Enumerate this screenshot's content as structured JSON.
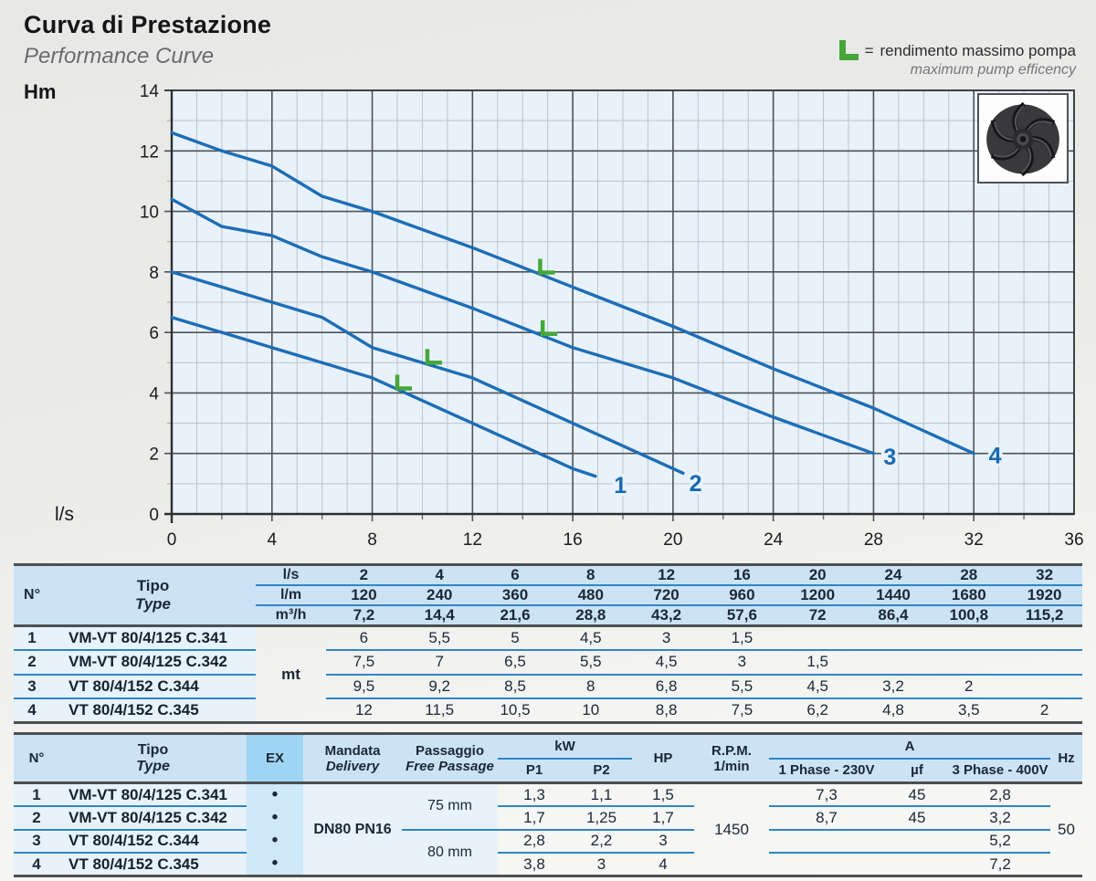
{
  "header": {
    "title": "Curva di Prestazione",
    "subtitle": "Performance Curve",
    "legend": {
      "equals": "=",
      "line1": "rendimento massimo pompa",
      "line2": "maximum pump efficency"
    }
  },
  "chart_data": {
    "type": "line",
    "title": "Curva di Prestazione / Performance Curve",
    "xlabel": "l/s",
    "ylabel": "Hm",
    "xlim": [
      0,
      36
    ],
    "ylim": [
      0,
      14
    ],
    "x_ticks": [
      0,
      4,
      8,
      12,
      16,
      20,
      24,
      28,
      32,
      36
    ],
    "y_ticks": [
      0,
      2,
      4,
      6,
      8,
      10,
      12,
      14
    ],
    "grid": "minor every 1 unit; major every 4 (x) and 2 (y); legend top-right",
    "curve_color": "#1d6db6",
    "marker_color": "#44a737",
    "marker_meaning": "L = rendimento massimo pompa / maximum pump efficency",
    "series": [
      {
        "name": "1",
        "pump": "VM-VT 80/4/125 C.341",
        "x": [
          0,
          2,
          4,
          6,
          8,
          12,
          16,
          16.9
        ],
        "y": [
          6.5,
          6,
          5.5,
          5,
          4.5,
          3,
          1.5,
          1.25
        ],
        "efficiency_marker": [
          9,
          4.15
        ],
        "label_pos": [
          17.9,
          0.97
        ]
      },
      {
        "name": "2",
        "pump": "VM-VT 80/4/125 C.342",
        "x": [
          0,
          2,
          4,
          6,
          8,
          12,
          16,
          20,
          20.4
        ],
        "y": [
          8,
          7.5,
          7,
          6.5,
          5.5,
          4.5,
          3,
          1.5,
          1.35
        ],
        "efficiency_marker": [
          10.2,
          5.0
        ],
        "label_pos": [
          20.9,
          1.02
        ]
      },
      {
        "name": "3",
        "pump": "VT 80/4/152 C.344",
        "x": [
          0,
          2,
          4,
          6,
          8,
          12,
          16,
          20,
          24,
          28
        ],
        "y": [
          10.4,
          9.5,
          9.2,
          8.5,
          8,
          6.8,
          5.5,
          4.5,
          3.2,
          2
        ],
        "efficiency_marker": [
          14.8,
          5.95
        ],
        "label_pos": [
          28.65,
          1.9
        ]
      },
      {
        "name": "4",
        "pump": "VT 80/4/152 C.345",
        "x": [
          0,
          2,
          4,
          6,
          8,
          12,
          16,
          20,
          24,
          28,
          32
        ],
        "y": [
          12.6,
          12,
          11.5,
          10.5,
          10,
          8.8,
          7.5,
          6.2,
          4.8,
          3.5,
          2
        ],
        "efficiency_marker": [
          14.7,
          7.98
        ],
        "label_pos": [
          32.85,
          1.95
        ]
      }
    ]
  },
  "tables": {
    "t1": {
      "header": {
        "n": "N°",
        "tipo": "Tipo",
        "type": "Type"
      },
      "unit_rows": [
        {
          "unit": "l/s",
          "values": [
            "2",
            "4",
            "6",
            "8",
            "12",
            "16",
            "20",
            "24",
            "28",
            "32"
          ]
        },
        {
          "unit": "l/m",
          "values": [
            "120",
            "240",
            "360",
            "480",
            "720",
            "960",
            "1200",
            "1440",
            "1680",
            "1920"
          ]
        },
        {
          "unit": "m³/h",
          "values": [
            "7,2",
            "14,4",
            "21,6",
            "28,8",
            "43,2",
            "57,6",
            "72",
            "86,4",
            "100,8",
            "115,2"
          ]
        }
      ],
      "unit_merged": "mt",
      "rows": [
        {
          "n": "1",
          "tipo": "VM-VT 80/4/125 C.341",
          "values": [
            "6",
            "5,5",
            "5",
            "4,5",
            "3",
            "1,5",
            "",
            "",
            "",
            ""
          ]
        },
        {
          "n": "2",
          "tipo": "VM-VT 80/4/125 C.342",
          "values": [
            "7,5",
            "7",
            "6,5",
            "5,5",
            "4,5",
            "3",
            "1,5",
            "",
            "",
            ""
          ]
        },
        {
          "n": "3",
          "tipo": "VT 80/4/152 C.344",
          "values": [
            "9,5",
            "9,2",
            "8,5",
            "8",
            "6,8",
            "5,5",
            "4,5",
            "3,2",
            "2",
            ""
          ]
        },
        {
          "n": "4",
          "tipo": "VT 80/4/152 C.345",
          "values": [
            "12",
            "11,5",
            "10,5",
            "10",
            "8,8",
            "7,5",
            "6,2",
            "4,8",
            "3,5",
            "2"
          ]
        }
      ]
    },
    "t2": {
      "header": {
        "n": "N°",
        "tipo": "Tipo",
        "type": "Type",
        "ex": "EX",
        "mandata": "Mandata",
        "delivery": "Delivery",
        "passaggio": "Passaggio",
        "free_passage": "Free Passage",
        "kw": "kW",
        "p1": "P1",
        "p2": "P2",
        "hp": "HP",
        "rpm": "R.P.M.",
        "rpm_unit": "1/min",
        "a": "A",
        "phase1": "1 Phase - 230V",
        "uf": "µf",
        "phase3": "3 Phase - 400V",
        "hz": "Hz"
      },
      "mandata_value": "DN80 PN16",
      "passage_values": [
        "75 mm",
        "80 mm"
      ],
      "rpm_value": "1450",
      "hz_value": "50",
      "ex_dot": "•",
      "rows": [
        {
          "n": "1",
          "tipo": "VM-VT 80/4/125 C.341",
          "p1": "1,3",
          "p2": "1,1",
          "hp": "1,5",
          "ph1": "7,3",
          "uf": "45",
          "ph3": "2,8"
        },
        {
          "n": "2",
          "tipo": "VM-VT 80/4/125 C.342",
          "p1": "1,7",
          "p2": "1,25",
          "hp": "1,7",
          "ph1": "8,7",
          "uf": "45",
          "ph3": "3,2"
        },
        {
          "n": "3",
          "tipo": "VT 80/4/152 C.344",
          "p1": "2,8",
          "p2": "2,2",
          "hp": "3",
          "ph1": "",
          "uf": "",
          "ph3": "5,2"
        },
        {
          "n": "4",
          "tipo": "VT 80/4/152 C.345",
          "p1": "3,8",
          "p2": "3",
          "hp": "4",
          "ph1": "",
          "uf": "",
          "ph3": "7,2"
        }
      ]
    }
  }
}
